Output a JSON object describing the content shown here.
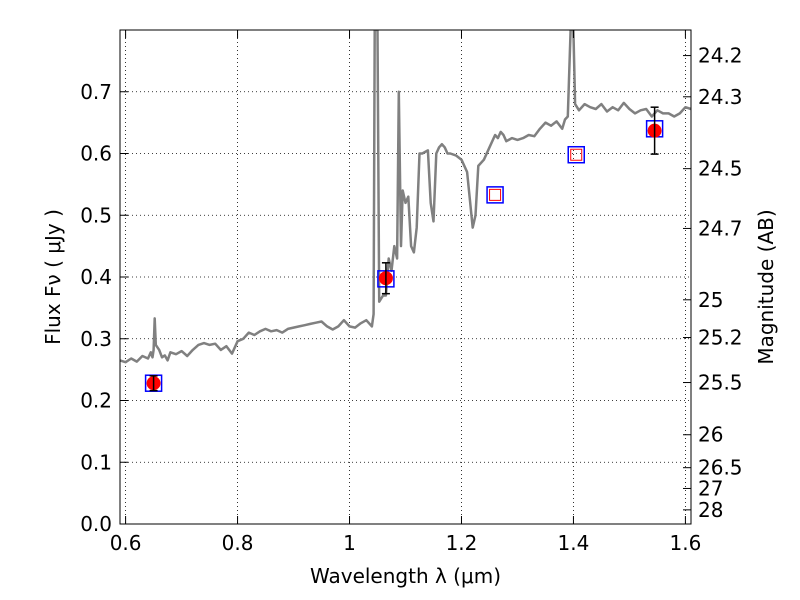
{
  "chart_data": {
    "type": "scatter",
    "xlabel": "Wavelength  λ (μm)",
    "ylabel": "Flux  Fν  ( μJy )",
    "y2label": "Magnitude (AB)",
    "xlim": [
      0.59,
      1.61
    ],
    "ylim": [
      0.0,
      0.8
    ],
    "grid": true,
    "x_ticks": [
      0.6,
      0.8,
      1.0,
      1.2,
      1.4,
      1.6
    ],
    "x_tick_labels": [
      "0.6",
      "0.8",
      "1",
      "1.2",
      "1.4",
      "1.6"
    ],
    "y_ticks": [
      0.0,
      0.1,
      0.2,
      0.3,
      0.4,
      0.5,
      0.6,
      0.7
    ],
    "y_tick_labels": [
      "0.0",
      "0.1",
      "0.2",
      "0.3",
      "0.4",
      "0.5",
      "0.6",
      "0.7"
    ],
    "mag_ticks": [
      24.2,
      24.3,
      24.5,
      24.7,
      25,
      25.2,
      25.5,
      26,
      26.5,
      27,
      28
    ],
    "mag_tick_labels": [
      "24.2",
      "24.3",
      "24.5",
      "24.7",
      "25",
      "25.2",
      "25.5",
      "26",
      "26.5",
      "27",
      "28"
    ],
    "series": [
      {
        "kind": "spectrum",
        "color": "#808080",
        "points": [
          [
            0.59,
            0.265
          ],
          [
            0.6,
            0.262
          ],
          [
            0.61,
            0.268
          ],
          [
            0.62,
            0.263
          ],
          [
            0.63,
            0.272
          ],
          [
            0.64,
            0.268
          ],
          [
            0.645,
            0.278
          ],
          [
            0.648,
            0.27
          ],
          [
            0.65,
            0.282
          ],
          [
            0.652,
            0.333
          ],
          [
            0.654,
            0.29
          ],
          [
            0.66,
            0.282
          ],
          [
            0.665,
            0.27
          ],
          [
            0.67,
            0.273
          ],
          [
            0.675,
            0.265
          ],
          [
            0.68,
            0.278
          ],
          [
            0.69,
            0.275
          ],
          [
            0.7,
            0.28
          ],
          [
            0.71,
            0.272
          ],
          [
            0.72,
            0.282
          ],
          [
            0.73,
            0.29
          ],
          [
            0.74,
            0.293
          ],
          [
            0.75,
            0.29
          ],
          [
            0.76,
            0.292
          ],
          [
            0.77,
            0.282
          ],
          [
            0.78,
            0.288
          ],
          [
            0.79,
            0.276
          ],
          [
            0.8,
            0.296
          ],
          [
            0.81,
            0.3
          ],
          [
            0.82,
            0.31
          ],
          [
            0.83,
            0.306
          ],
          [
            0.84,
            0.312
          ],
          [
            0.85,
            0.316
          ],
          [
            0.86,
            0.312
          ],
          [
            0.87,
            0.314
          ],
          [
            0.88,
            0.31
          ],
          [
            0.89,
            0.316
          ],
          [
            0.9,
            0.318
          ],
          [
            0.91,
            0.32
          ],
          [
            0.92,
            0.322
          ],
          [
            0.93,
            0.324
          ],
          [
            0.94,
            0.326
          ],
          [
            0.95,
            0.328
          ],
          [
            0.96,
            0.32
          ],
          [
            0.97,
            0.315
          ],
          [
            0.98,
            0.32
          ],
          [
            0.99,
            0.33
          ],
          [
            1.0,
            0.32
          ],
          [
            1.01,
            0.318
          ],
          [
            1.02,
            0.325
          ],
          [
            1.03,
            0.33
          ],
          [
            1.04,
            0.32
          ],
          [
            1.043,
            0.34
          ],
          [
            1.045,
            0.8
          ],
          [
            1.05,
            0.8
          ],
          [
            1.053,
            0.36
          ],
          [
            1.06,
            0.37
          ],
          [
            1.065,
            0.37
          ],
          [
            1.07,
            0.43
          ],
          [
            1.075,
            0.41
          ],
          [
            1.08,
            0.45
          ],
          [
            1.085,
            0.43
          ],
          [
            1.088,
            0.7
          ],
          [
            1.092,
            0.45
          ],
          [
            1.095,
            0.54
          ],
          [
            1.1,
            0.52
          ],
          [
            1.105,
            0.53
          ],
          [
            1.11,
            0.45
          ],
          [
            1.115,
            0.44
          ],
          [
            1.12,
            0.48
          ],
          [
            1.125,
            0.6
          ],
          [
            1.13,
            0.6
          ],
          [
            1.14,
            0.605
          ],
          [
            1.145,
            0.52
          ],
          [
            1.15,
            0.49
          ],
          [
            1.155,
            0.6
          ],
          [
            1.16,
            0.61
          ],
          [
            1.165,
            0.615
          ],
          [
            1.17,
            0.61
          ],
          [
            1.175,
            0.6
          ],
          [
            1.18,
            0.6
          ],
          [
            1.19,
            0.597
          ],
          [
            1.2,
            0.59
          ],
          [
            1.21,
            0.57
          ],
          [
            1.22,
            0.48
          ],
          [
            1.225,
            0.5
          ],
          [
            1.23,
            0.58
          ],
          [
            1.24,
            0.59
          ],
          [
            1.25,
            0.61
          ],
          [
            1.26,
            0.63
          ],
          [
            1.265,
            0.625
          ],
          [
            1.27,
            0.635
          ],
          [
            1.275,
            0.63
          ],
          [
            1.28,
            0.62
          ],
          [
            1.29,
            0.625
          ],
          [
            1.3,
            0.622
          ],
          [
            1.31,
            0.625
          ],
          [
            1.32,
            0.63
          ],
          [
            1.33,
            0.628
          ],
          [
            1.34,
            0.64
          ],
          [
            1.35,
            0.65
          ],
          [
            1.36,
            0.645
          ],
          [
            1.37,
            0.652
          ],
          [
            1.38,
            0.64
          ],
          [
            1.385,
            0.655
          ],
          [
            1.39,
            0.66
          ],
          [
            1.395,
            0.8
          ],
          [
            1.4,
            0.8
          ],
          [
            1.403,
            0.68
          ],
          [
            1.41,
            0.67
          ],
          [
            1.42,
            0.68
          ],
          [
            1.43,
            0.675
          ],
          [
            1.44,
            0.672
          ],
          [
            1.45,
            0.68
          ],
          [
            1.46,
            0.668
          ],
          [
            1.47,
            0.675
          ],
          [
            1.48,
            0.67
          ],
          [
            1.49,
            0.682
          ],
          [
            1.5,
            0.672
          ],
          [
            1.51,
            0.665
          ],
          [
            1.52,
            0.67
          ],
          [
            1.53,
            0.672
          ],
          [
            1.54,
            0.66
          ],
          [
            1.55,
            0.67
          ],
          [
            1.56,
            0.665
          ],
          [
            1.57,
            0.665
          ],
          [
            1.58,
            0.66
          ],
          [
            1.59,
            0.665
          ],
          [
            1.6,
            0.675
          ],
          [
            1.61,
            0.672
          ]
        ]
      },
      {
        "kind": "model-photometry",
        "marker": "open-square",
        "color": "#0000ff",
        "points": [
          [
            0.65,
            0.228
          ],
          [
            1.065,
            0.397
          ],
          [
            1.26,
            0.533
          ],
          [
            1.405,
            0.598
          ],
          [
            1.545,
            0.64
          ]
        ]
      },
      {
        "kind": "model-photometry-inner",
        "marker": "open-square-small",
        "color": "#ff0000",
        "points": [
          [
            1.26,
            0.533
          ],
          [
            1.405,
            0.598
          ]
        ]
      },
      {
        "kind": "observed",
        "marker": "filled-circle",
        "color": "#ff0000",
        "points": [
          {
            "x": 0.65,
            "y": 0.228,
            "err": 0.012
          },
          {
            "x": 1.065,
            "y": 0.398,
            "err": 0.025
          },
          {
            "x": 1.545,
            "y": 0.637,
            "err": 0.038
          }
        ]
      }
    ]
  }
}
